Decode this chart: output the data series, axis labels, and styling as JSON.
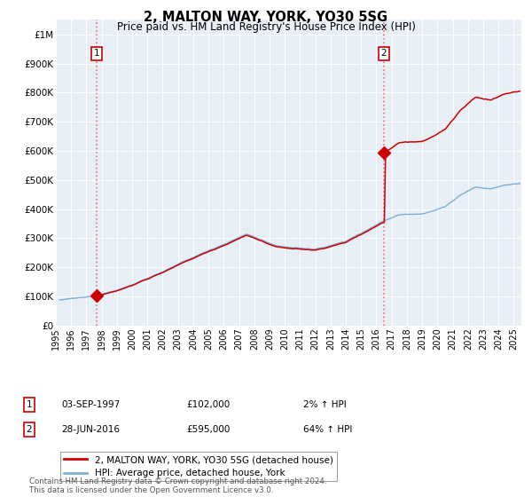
{
  "title": "2, MALTON WAY, YORK, YO30 5SG",
  "subtitle": "Price paid vs. HM Land Registry's House Price Index (HPI)",
  "hpi_color": "#7bafd4",
  "property_color": "#cc0000",
  "dashed_color": "#e87070",
  "plot_bg": "#e8eef5",
  "grid_color": "#ffffff",
  "ylim": [
    0,
    1050000
  ],
  "xlim_start": 1995.3,
  "xlim_end": 2025.5,
  "yticks": [
    0,
    100000,
    200000,
    300000,
    400000,
    500000,
    600000,
    700000,
    800000,
    900000,
    1000000
  ],
  "ytick_labels": [
    "£0",
    "£100K",
    "£200K",
    "£300K",
    "£400K",
    "£500K",
    "£600K",
    "£700K",
    "£800K",
    "£900K",
    "£1M"
  ],
  "xticks": [
    1995,
    1996,
    1997,
    1998,
    1999,
    2000,
    2001,
    2002,
    2003,
    2004,
    2005,
    2006,
    2007,
    2008,
    2009,
    2010,
    2011,
    2012,
    2013,
    2014,
    2015,
    2016,
    2017,
    2018,
    2019,
    2020,
    2021,
    2022,
    2023,
    2024,
    2025
  ],
  "sale1_x": 1997.67,
  "sale1_y": 102000,
  "sale1_label": "1",
  "sale2_x": 2016.49,
  "sale2_y": 595000,
  "sale2_label": "2",
  "legend_property": "2, MALTON WAY, YORK, YO30 5SG (detached house)",
  "legend_hpi": "HPI: Average price, detached house, York",
  "table_row1": [
    "1",
    "03-SEP-1997",
    "£102,000",
    "2% ↑ HPI"
  ],
  "table_row2": [
    "2",
    "28-JUN-2016",
    "£595,000",
    "64% ↑ HPI"
  ],
  "footer": "Contains HM Land Registry data © Crown copyright and database right 2024.\nThis data is licensed under the Open Government Licence v3.0."
}
